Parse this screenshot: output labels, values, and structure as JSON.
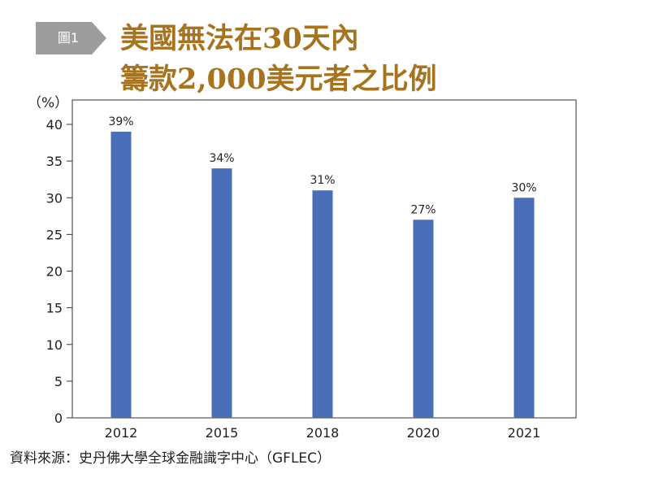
{
  "badge": {
    "label": "圖1",
    "color": "#9d9d9d"
  },
  "title": {
    "line1": "美國無法在30天內",
    "line2": "籌款2,000美元者之比例",
    "color": "#a8731e"
  },
  "source": "資料來源：史丹佛大學全球金融識字中心（GFLEC）",
  "chart_data": {
    "type": "bar",
    "categories": [
      "2012",
      "2015",
      "2018",
      "2020",
      "2021"
    ],
    "values": [
      39,
      34,
      31,
      27,
      30
    ],
    "data_labels": [
      "39%",
      "34%",
      "31%",
      "27%",
      "30%"
    ],
    "ylabel": "（%）",
    "ylim": [
      0,
      40
    ],
    "yticks": [
      "0",
      "5",
      "10",
      "15",
      "20",
      "25",
      "30",
      "35",
      "40"
    ],
    "bar_color": "#4a6fb8",
    "grid": false,
    "legend": "none"
  }
}
